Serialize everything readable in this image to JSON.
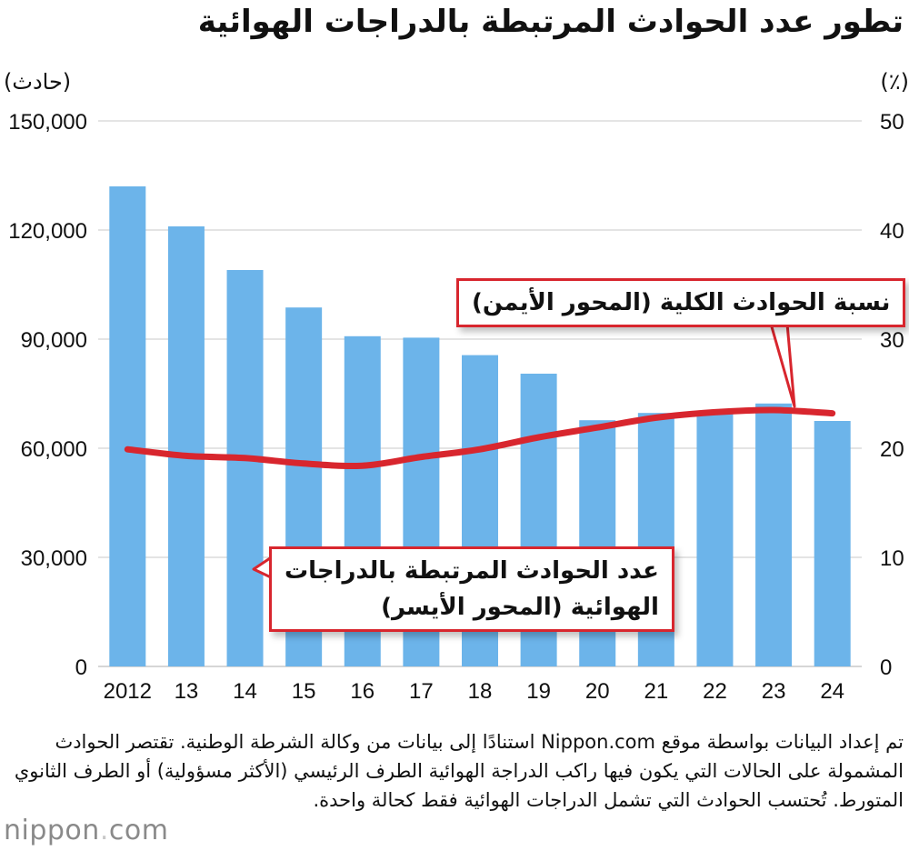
{
  "title": "تطور عدد الحوادث المرتبطة بالدراجات الهوائية",
  "left_unit": "(حادث)",
  "right_unit": "(٪)",
  "annotations": {
    "line_label": "نسبة الحوادث الكلية (المحور الأيمن)",
    "bar_label_line1": "عدد الحوادث المرتبطة بالدراجات",
    "bar_label_line2": "الهوائية (المحور الأيسر)"
  },
  "note": "تم إعداد البيانات بواسطة موقع Nippon.com استنادًا إلى بيانات من وكالة الشرطة الوطنية. تقتصر الحوادث المشمولة على الحالات التي يكون فيها راكب الدراجة الهوائية الطرف الرئيسي (الأكثر مسؤولية) أو الطرف الثانوي المتورط. تُحتسب الحوادث التي تشمل الدراجات الهوائية فقط كحالة واحدة.",
  "logo": {
    "name": "nippon",
    "dot": ".",
    "tld": "com"
  },
  "colors": {
    "bars": "#6cb4ea",
    "line": "#d8262e",
    "grid": "#c8c8c8"
  },
  "chart_data": {
    "type": "bar+line",
    "categories": [
      "2012",
      "13",
      "14",
      "15",
      "16",
      "17",
      "18",
      "19",
      "20",
      "21",
      "22",
      "23",
      "24"
    ],
    "series": [
      {
        "name": "عدد الحوادث المرتبطة بالدراجات الهوائية (المحور الأيسر)",
        "type": "bar",
        "axis": "left",
        "values": [
          132000,
          121000,
          109000,
          98700,
          90800,
          90400,
          85600,
          80500,
          67700,
          69700,
          69900,
          72300,
          67500
        ]
      },
      {
        "name": "نسبة الحوادث الكلية (المحور الأيمن)",
        "type": "line",
        "axis": "right",
        "values": [
          19.9,
          19.3,
          19.1,
          18.6,
          18.4,
          19.2,
          19.9,
          21.0,
          21.9,
          22.8,
          23.3,
          23.5,
          23.2
        ]
      }
    ],
    "y_left": {
      "ylim": [
        0,
        150000
      ],
      "ticks": [
        "0",
        "30,000",
        "60,000",
        "90,000",
        "120,000",
        "150,000"
      ],
      "tick_values": [
        0,
        30000,
        60000,
        90000,
        120000,
        150000
      ]
    },
    "y_right": {
      "ylim": [
        0,
        50
      ],
      "ticks": [
        "0",
        "10",
        "20",
        "30",
        "40",
        "50"
      ],
      "tick_values": [
        0,
        10,
        20,
        30,
        40,
        50
      ]
    },
    "grid": true,
    "legend": "inline-callouts"
  }
}
